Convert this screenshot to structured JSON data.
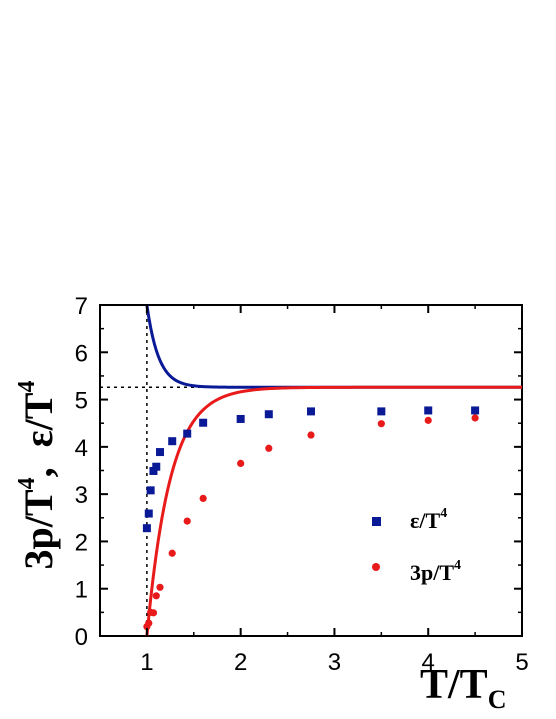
{
  "chart_data": {
    "type": "scatter",
    "xlim": [
      0.5,
      5
    ],
    "ylim": [
      0,
      7
    ],
    "xticks": [
      1,
      2,
      3,
      4,
      5
    ],
    "yticks": [
      0,
      1,
      2,
      3,
      4,
      5,
      6,
      7
    ],
    "xlabel": {
      "main": "T/T",
      "sub": "C"
    },
    "ylabel": {
      "part1": "3p/T",
      "sup1": "4",
      "sep": ",  ",
      "part2": "ε/T",
      "sup2": "4"
    },
    "reference_lines": {
      "x": 1,
      "y": 5.26
    },
    "series": [
      {
        "name": "ε/T4",
        "legend": {
          "text": "ε/T",
          "sup": "4"
        },
        "marker": "square",
        "color": "#0a1a96",
        "x": [
          1.0,
          1.02,
          1.04,
          1.07,
          1.1,
          1.14,
          1.27,
          1.43,
          1.6,
          2.0,
          2.3,
          2.75,
          3.5,
          4.0,
          4.5
        ],
        "y": [
          2.28,
          2.59,
          3.08,
          3.49,
          3.58,
          3.89,
          4.12,
          4.28,
          4.51,
          4.59,
          4.69,
          4.75,
          4.75,
          4.77,
          4.77
        ]
      },
      {
        "name": "3p/T4",
        "legend": {
          "text": "3p/T",
          "sup": "4"
        },
        "marker": "circle",
        "color": "#e81a1a",
        "x": [
          1.0,
          1.02,
          1.04,
          1.07,
          1.1,
          1.14,
          1.27,
          1.43,
          1.6,
          2.0,
          2.3,
          2.75,
          3.5,
          4.0,
          4.5
        ],
        "y": [
          0.2,
          0.27,
          0.5,
          0.49,
          0.85,
          1.03,
          1.75,
          2.43,
          2.91,
          3.65,
          3.97,
          4.25,
          4.49,
          4.56,
          4.61
        ]
      }
    ],
    "curves": [
      {
        "name": "ε/T4 ideal",
        "color": "#0a1a96",
        "x_start": 1.0,
        "x_end": 5.0,
        "asymptote": 5.26,
        "start_value": 7.0,
        "decay": 8.0
      },
      {
        "name": "3p/T4 ideal",
        "color": "#e81a1a",
        "x_start": 1.0,
        "x_end": 5.0,
        "asymptote": 5.26,
        "start_value": 0.0,
        "decay": 4.0
      }
    ]
  }
}
